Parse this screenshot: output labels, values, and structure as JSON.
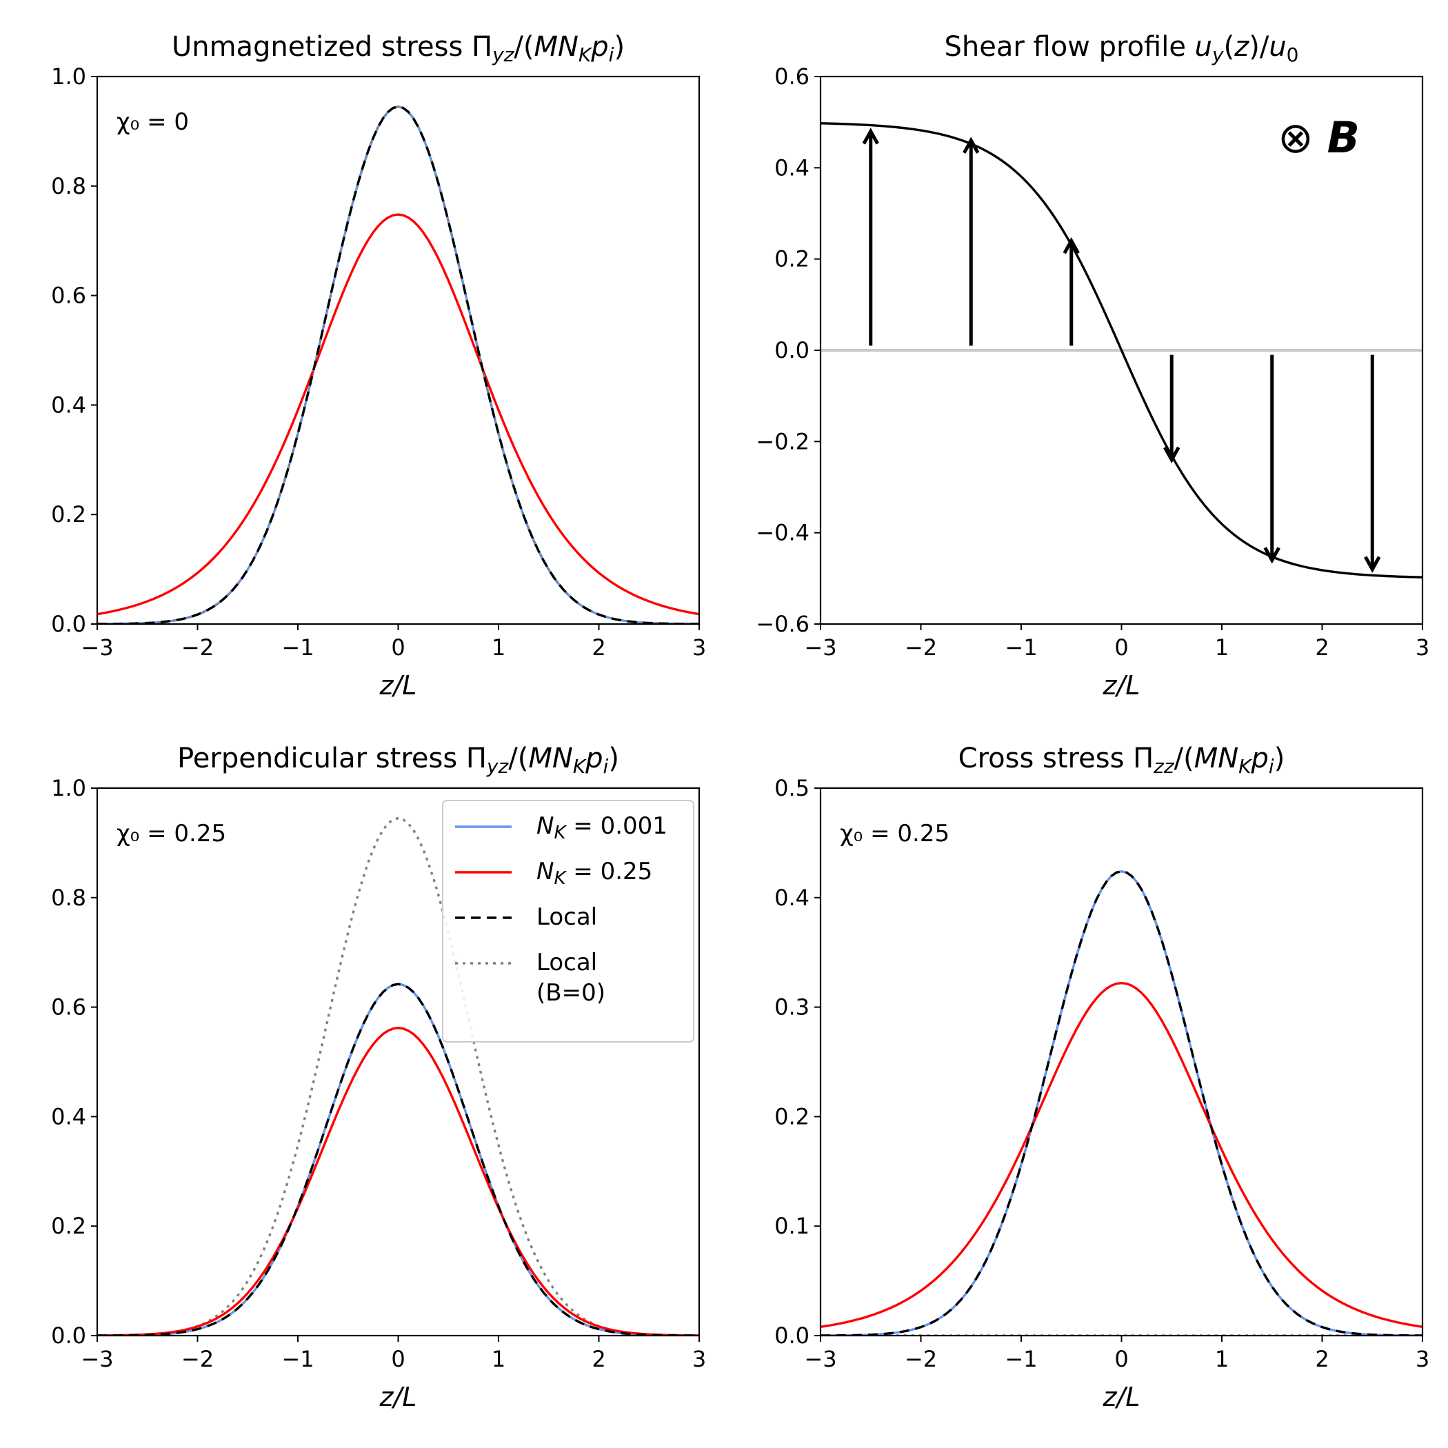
{
  "chart_data": [
    {
      "id": "p1",
      "type": "line",
      "title": "Unmagnetized stress Πyz/(MNκpi)",
      "title_parts": {
        "pre": "Unmagnetized stress Π",
        "sub1": "yz",
        "mid": "/(",
        "italic": "MN",
        "sub2": "K",
        "italic2": "p",
        "sub3": "i",
        "post": ")"
      },
      "xlabel": "z/L",
      "ylabel": "",
      "xlim": [
        -3,
        3
      ],
      "ylim": [
        0,
        1.0
      ],
      "xticks": [
        -3,
        -2,
        -1,
        0,
        1,
        2,
        3
      ],
      "yticks": [
        0.0,
        0.2,
        0.4,
        0.6,
        0.8,
        1.0
      ],
      "xtick_labels": [
        "−3",
        "−2",
        "−1",
        "0",
        "1",
        "2",
        "3"
      ],
      "ytick_labels": [
        "0.0",
        "0.2",
        "0.4",
        "0.6",
        "0.8",
        "1.0"
      ],
      "annotation": "χ₀ = 0",
      "series": [
        {
          "name": "N_K = 0.001",
          "kind": "gauss",
          "peak": 0.945,
          "color": "#6495ed",
          "style": "solid"
        },
        {
          "name": "N_K = 0.25",
          "kind": "broad",
          "peak": 0.748,
          "tail_at_3": 0.018,
          "color": "#ff0000",
          "style": "solid"
        },
        {
          "name": "Local (B=0)",
          "kind": "gauss",
          "peak": 0.945,
          "color": "#808080",
          "style": "dotted"
        },
        {
          "name": "Local",
          "kind": "gauss",
          "peak": 0.945,
          "color": "#000000",
          "style": "dashed"
        }
      ]
    },
    {
      "id": "p2",
      "type": "line",
      "title": "Shear flow profile uy(z)/u0",
      "title_parts": {
        "pre": "Shear flow profile ",
        "italic": "u",
        "sub1": "y",
        "mid": "(",
        "italic2": "z",
        "mid2": ")/",
        "italic3": "u",
        "sub2": "0"
      },
      "xlabel": "z/L",
      "ylabel": "",
      "xlim": [
        -3,
        3
      ],
      "ylim": [
        -0.6,
        0.6
      ],
      "xticks": [
        -3,
        -2,
        -1,
        0,
        1,
        2,
        3
      ],
      "yticks": [
        -0.6,
        -0.4,
        -0.2,
        0.0,
        0.2,
        0.4,
        0.6
      ],
      "xtick_labels": [
        "−3",
        "−2",
        "−1",
        "0",
        "1",
        "2",
        "3"
      ],
      "ytick_labels": [
        "−0.6",
        "−0.4",
        "−0.2",
        "0.0",
        "0.2",
        "0.4",
        "0.6"
      ],
      "annotation": "⊗ B",
      "annotation_symbol": "⊗",
      "annotation_letter": "B",
      "curve": "u = -0.5 tanh(z)",
      "arrows": [
        {
          "x": -2.5,
          "y_tip": 0.48
        },
        {
          "x": -1.5,
          "y_tip": 0.46
        },
        {
          "x": -0.5,
          "y_tip": 0.24
        },
        {
          "x": 0.5,
          "y_tip": -0.24
        },
        {
          "x": 1.5,
          "y_tip": -0.46
        },
        {
          "x": 2.5,
          "y_tip": -0.48
        }
      ]
    },
    {
      "id": "p3",
      "type": "line",
      "title": "Perpendicular stress Πyz/(MNκpi)",
      "title_parts": {
        "pre": "Perpendicular stress Π",
        "sub1": "yz",
        "mid": "/(",
        "italic": "MN",
        "sub2": "K",
        "italic2": "p",
        "sub3": "i",
        "post": ")"
      },
      "xlabel": "z/L",
      "ylabel": "",
      "xlim": [
        -3,
        3
      ],
      "ylim": [
        0,
        1.0
      ],
      "xticks": [
        -3,
        -2,
        -1,
        0,
        1,
        2,
        3
      ],
      "yticks": [
        0.0,
        0.2,
        0.4,
        0.6,
        0.8,
        1.0
      ],
      "xtick_labels": [
        "−3",
        "−2",
        "−1",
        "0",
        "1",
        "2",
        "3"
      ],
      "ytick_labels": [
        "0.0",
        "0.2",
        "0.4",
        "0.6",
        "0.8",
        "1.0"
      ],
      "annotation": "χ₀ = 0.25",
      "legend": {
        "position": "top-right",
        "entries": [
          {
            "label": "NΚ = 0.001",
            "pre": "N",
            "sub": "K",
            "post": " = 0.001",
            "color": "#6495ed",
            "style": "solid"
          },
          {
            "label": "NΚ = 0.25",
            "pre": "N",
            "sub": "K",
            "post": " = 0.25",
            "color": "#ff0000",
            "style": "solid"
          },
          {
            "label": "Local",
            "pre": "Local",
            "color": "#000000",
            "style": "dashed"
          },
          {
            "label": "Local (B=0)",
            "pre": "Local",
            "line2": "(B=0)",
            "color": "#808080",
            "style": "dotted"
          }
        ]
      },
      "series": [
        {
          "name": "Local (B=0)",
          "kind": "gauss",
          "peak": 0.945,
          "color": "#808080",
          "style": "dotted"
        },
        {
          "name": "N_K = 0.001",
          "kind": "gauss",
          "peak": 0.642,
          "color": "#6495ed",
          "style": "solid"
        },
        {
          "name": "N_K = 0.25",
          "kind": "gauss_red",
          "peak": 0.562,
          "color": "#ff0000",
          "style": "solid"
        },
        {
          "name": "Local",
          "kind": "gauss",
          "peak": 0.642,
          "color": "#000000",
          "style": "dashed"
        }
      ]
    },
    {
      "id": "p4",
      "type": "line",
      "title": "Cross stress Πzz/(MNκpi)",
      "title_parts": {
        "pre": "Cross stress Π",
        "sub1": "zz",
        "mid": "/(",
        "italic": "MN",
        "sub2": "K",
        "italic2": "p",
        "sub3": "i",
        "post": ")"
      },
      "xlabel": "z/L",
      "ylabel": "",
      "xlim": [
        -3,
        3
      ],
      "ylim": [
        0,
        0.5
      ],
      "xticks": [
        -3,
        -2,
        -1,
        0,
        1,
        2,
        3
      ],
      "yticks": [
        0.0,
        0.1,
        0.2,
        0.3,
        0.4,
        0.5
      ],
      "xtick_labels": [
        "−3",
        "−2",
        "−1",
        "0",
        "1",
        "2",
        "3"
      ],
      "ytick_labels": [
        "0.0",
        "0.1",
        "0.2",
        "0.3",
        "0.4",
        "0.5"
      ],
      "annotation": "χ₀ = 0.25",
      "series": [
        {
          "name": "Local (B=0)",
          "kind": "zero",
          "peak": 0.0,
          "color": "#808080",
          "style": "dotted"
        },
        {
          "name": "N_K = 0.001",
          "kind": "gauss",
          "peak": 0.424,
          "color": "#6495ed",
          "style": "solid"
        },
        {
          "name": "N_K = 0.25",
          "kind": "broad",
          "peak": 0.322,
          "tail_at_3": 0.008,
          "color": "#ff0000",
          "style": "solid"
        },
        {
          "name": "Local",
          "kind": "gauss",
          "peak": 0.424,
          "color": "#000000",
          "style": "dashed"
        }
      ]
    }
  ]
}
